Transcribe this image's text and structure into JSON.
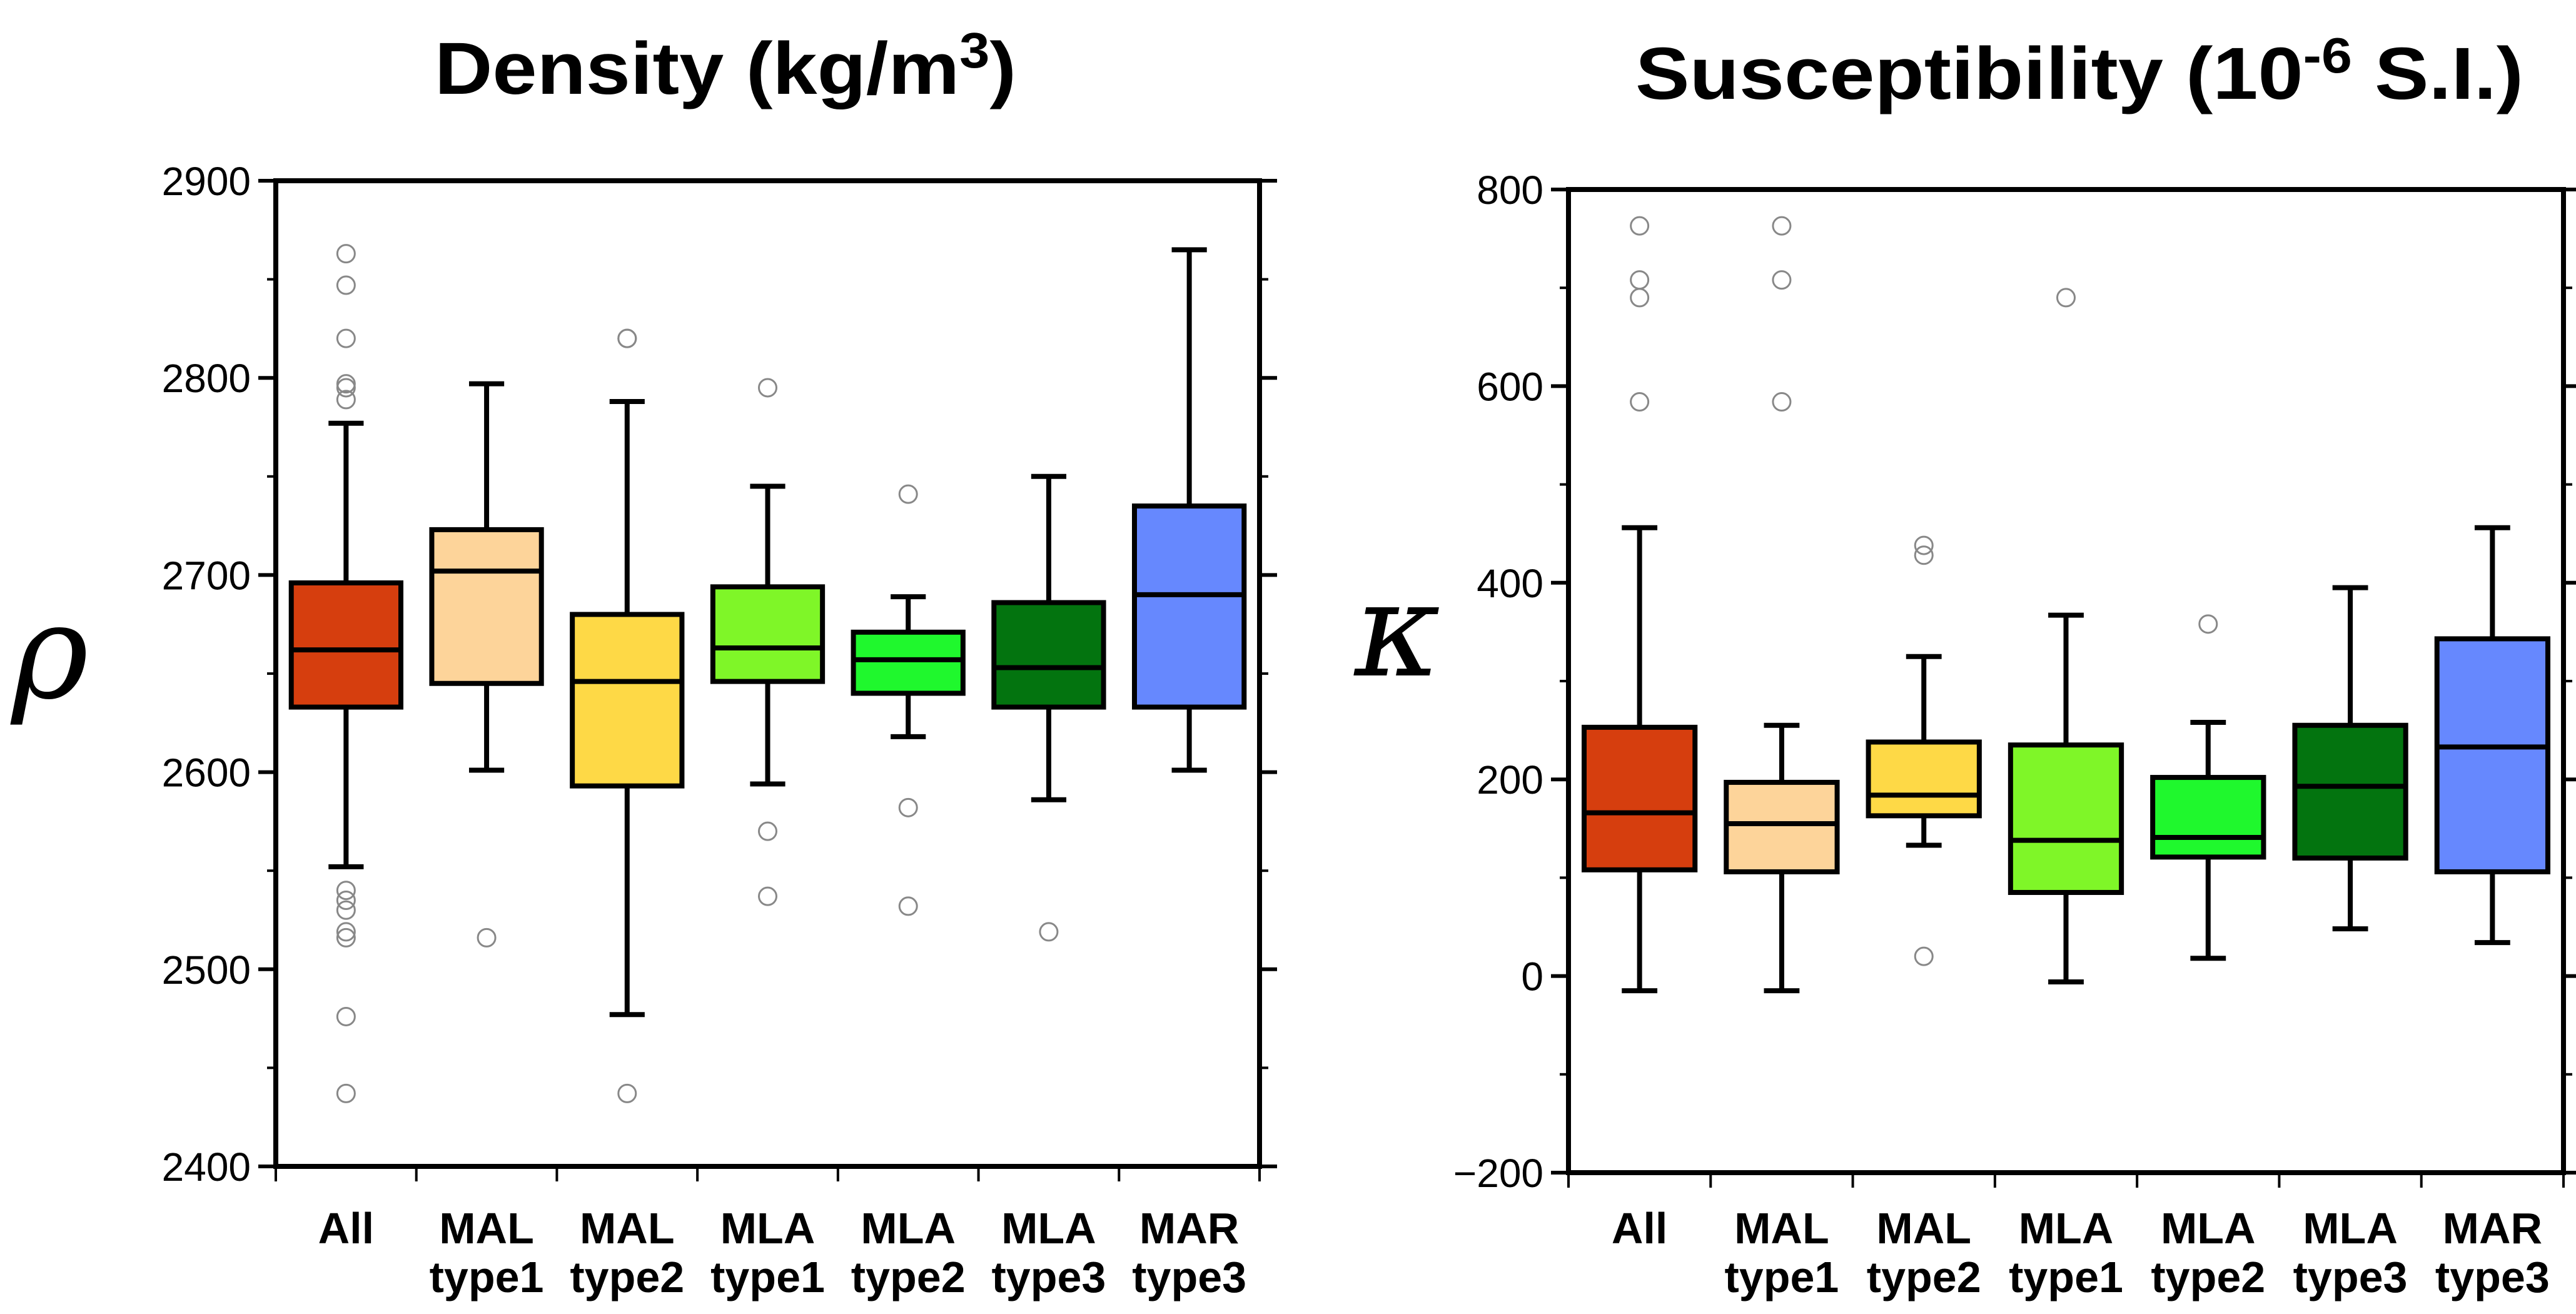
{
  "chart_data": [
    {
      "type": "box",
      "title": "Density (kg/m",
      "title_superscript": "3",
      "title_suffix": ")",
      "ylabel": "ρ",
      "ylim": [
        2400,
        2900
      ],
      "yticks": [
        2400,
        2500,
        2600,
        2700,
        2800,
        2900
      ],
      "categories": [
        {
          "line1": "All",
          "line2": ""
        },
        {
          "line1": "MAL",
          "line2": "type1"
        },
        {
          "line1": "MAL",
          "line2": "type2"
        },
        {
          "line1": "MLA",
          "line2": "type1"
        },
        {
          "line1": "MLA",
          "line2": "type2"
        },
        {
          "line1": "MLA",
          "line2": "type3"
        },
        {
          "line1": "MAR",
          "line2": "type3"
        }
      ],
      "boxes": [
        {
          "q1": 2633,
          "median": 2662,
          "q3": 2696,
          "whisker_low": 2552,
          "whisker_high": 2777,
          "outliers": [
            2863,
            2847,
            2820,
            2797,
            2795,
            2789,
            2540,
            2535,
            2530,
            2519,
            2516,
            2476,
            2437
          ]
        },
        {
          "q1": 2645,
          "median": 2702,
          "q3": 2723,
          "whisker_low": 2601,
          "whisker_high": 2797,
          "outliers": [
            2516
          ]
        },
        {
          "q1": 2593,
          "median": 2646,
          "q3": 2680,
          "whisker_low": 2477,
          "whisker_high": 2788,
          "outliers": [
            2820,
            2820,
            2437
          ]
        },
        {
          "q1": 2646,
          "median": 2663,
          "q3": 2694,
          "whisker_low": 2594,
          "whisker_high": 2745,
          "outliers": [
            2795,
            2570,
            2537
          ]
        },
        {
          "q1": 2640,
          "median": 2657,
          "q3": 2671,
          "whisker_low": 2618,
          "whisker_high": 2689,
          "outliers": [
            2741,
            2582,
            2532
          ]
        },
        {
          "q1": 2633,
          "median": 2653,
          "q3": 2686,
          "whisker_low": 2586,
          "whisker_high": 2750,
          "outliers": [
            2519
          ]
        },
        {
          "q1": 2633,
          "median": 2690,
          "q3": 2735,
          "whisker_low": 2601,
          "whisker_high": 2865,
          "outliers": []
        }
      ]
    },
    {
      "type": "box",
      "title": "Susceptibility (10",
      "title_superscript": "-6",
      "title_suffix": " S.I.)",
      "ylabel": "κ",
      "ylim": [
        -200,
        800
      ],
      "yticks": [
        -200,
        0,
        200,
        400,
        600,
        800
      ],
      "ytick_labels": [
        "−200",
        "0",
        "200",
        "400",
        "600",
        "800"
      ],
      "categories": [
        {
          "line1": "All",
          "line2": ""
        },
        {
          "line1": "MAL",
          "line2": "type1"
        },
        {
          "line1": "MAL",
          "line2": "type2"
        },
        {
          "line1": "MLA",
          "line2": "type1"
        },
        {
          "line1": "MLA",
          "line2": "type2"
        },
        {
          "line1": "MLA",
          "line2": "type3"
        },
        {
          "line1": "MAR",
          "line2": "type3"
        }
      ],
      "boxes": [
        {
          "q1": 108,
          "median": 166,
          "q3": 253,
          "whisker_low": -15,
          "whisker_high": 456,
          "outliers": [
            763,
            708,
            690,
            584
          ]
        },
        {
          "q1": 106,
          "median": 155,
          "q3": 197,
          "whisker_low": -15,
          "whisker_high": 255,
          "outliers": [
            763,
            708,
            584
          ]
        },
        {
          "q1": 163,
          "median": 184,
          "q3": 238,
          "whisker_low": 133,
          "whisker_high": 325,
          "outliers": [
            438,
            428,
            20
          ]
        },
        {
          "q1": 85,
          "median": 138,
          "q3": 235,
          "whisker_low": -6,
          "whisker_high": 367,
          "outliers": [
            690
          ]
        },
        {
          "q1": 121,
          "median": 141,
          "q3": 202,
          "whisker_low": 18,
          "whisker_high": 258,
          "outliers": [
            358
          ]
        },
        {
          "q1": 120,
          "median": 193,
          "q3": 255,
          "whisker_low": 48,
          "whisker_high": 395,
          "outliers": []
        },
        {
          "q1": 106,
          "median": 233,
          "q3": 343,
          "whisker_low": 34,
          "whisker_high": 456,
          "outliers": []
        }
      ]
    }
  ],
  "colors": [
    "#d63e0e",
    "#fdd49a",
    "#fed946",
    "#7ff628",
    "#1ff82d",
    "#03740f",
    "#6688fe"
  ],
  "outlier_color": "#888888"
}
